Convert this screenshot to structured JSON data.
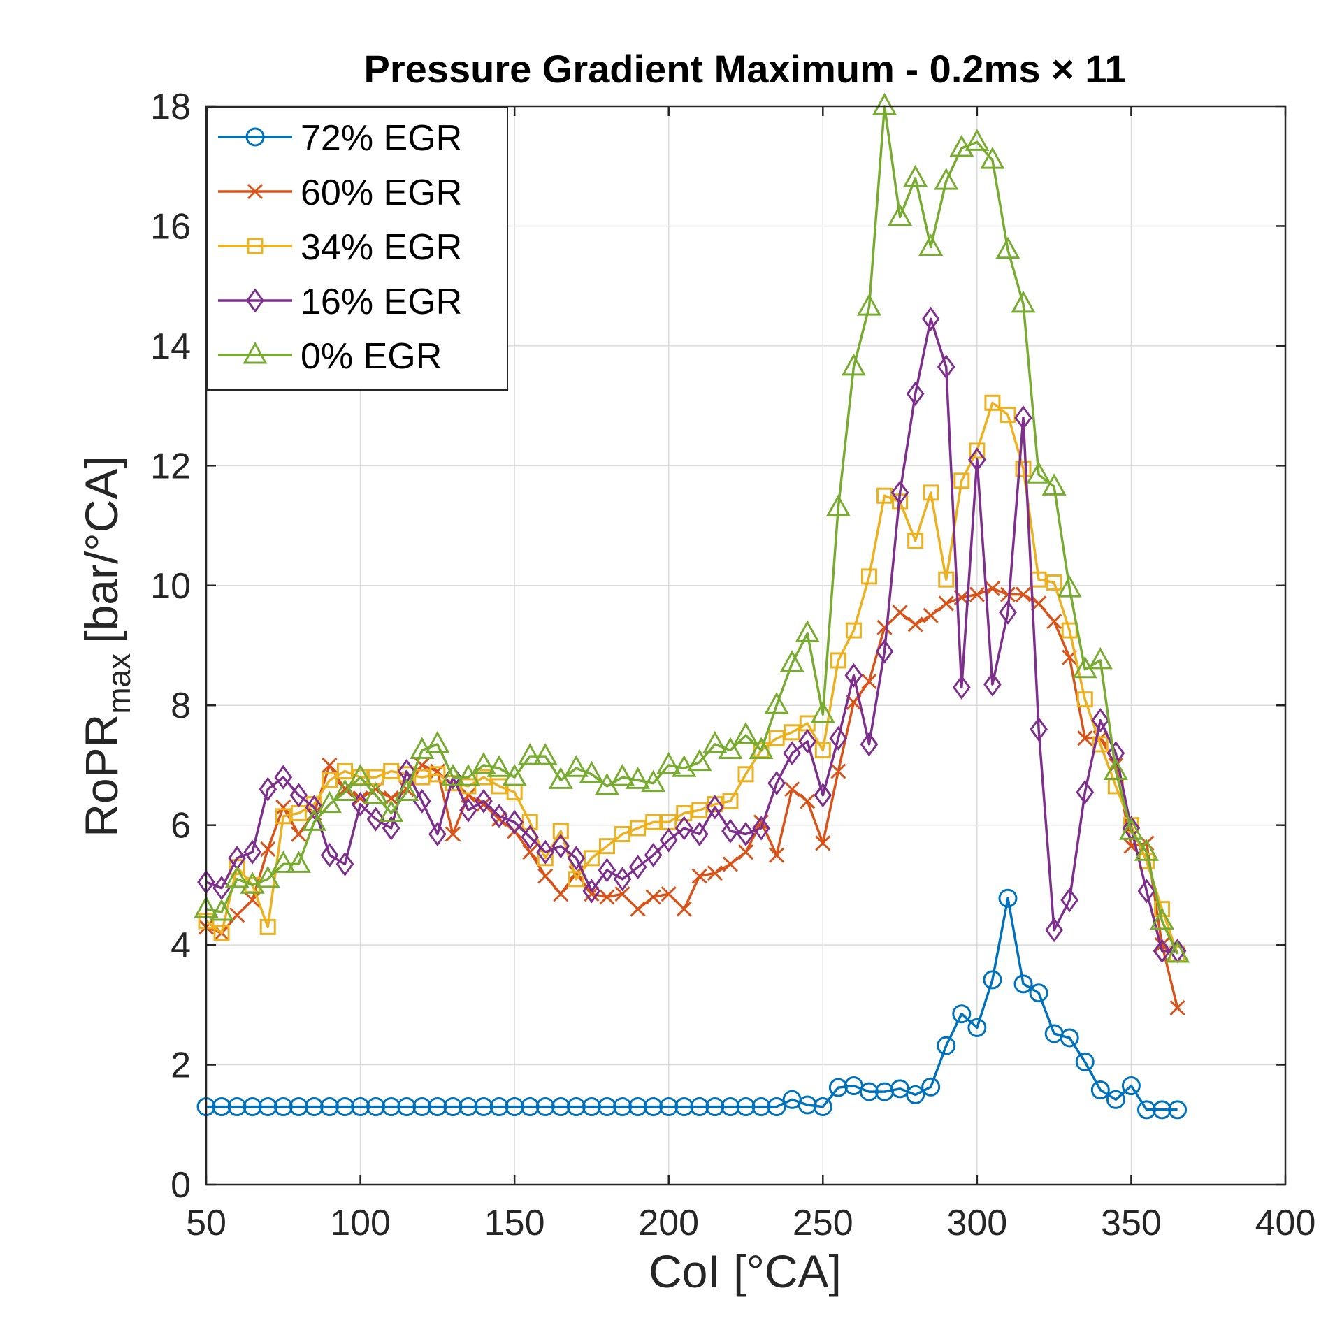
{
  "chart_data": {
    "type": "line",
    "title": "Pressure Gradient Maximum - 0.2ms × 11",
    "xlabel": "CoI [°CA]",
    "ylabel_main": "RoPR",
    "ylabel_sub": "max",
    "ylabel_unit": "[bar/°CA]",
    "xlim": [
      50,
      400
    ],
    "ylim": [
      0,
      18
    ],
    "xticks": [
      50,
      100,
      150,
      200,
      250,
      300,
      350,
      400
    ],
    "yticks": [
      0,
      2,
      4,
      6,
      8,
      10,
      12,
      14,
      16,
      18
    ],
    "grid": true,
    "legend_position": "top-left",
    "x": [
      50,
      55,
      60,
      65,
      70,
      75,
      80,
      85,
      90,
      95,
      100,
      105,
      110,
      115,
      120,
      125,
      130,
      135,
      140,
      145,
      150,
      155,
      160,
      165,
      170,
      175,
      180,
      185,
      190,
      195,
      200,
      205,
      210,
      215,
      220,
      225,
      230,
      235,
      240,
      245,
      250,
      255,
      260,
      265,
      270,
      275,
      280,
      285,
      290,
      295,
      300,
      305,
      310,
      315,
      320,
      325,
      330,
      335,
      340,
      345,
      350,
      355,
      360,
      365
    ],
    "series": [
      {
        "name": "72% EGR",
        "color": "#0072BD",
        "marker": "circle",
        "values": [
          1.3,
          1.3,
          1.3,
          1.3,
          1.3,
          1.3,
          1.3,
          1.3,
          1.3,
          1.3,
          1.3,
          1.3,
          1.3,
          1.3,
          1.3,
          1.3,
          1.3,
          1.3,
          1.3,
          1.3,
          1.3,
          1.3,
          1.3,
          1.3,
          1.3,
          1.3,
          1.3,
          1.3,
          1.3,
          1.3,
          1.3,
          1.3,
          1.3,
          1.3,
          1.3,
          1.3,
          1.3,
          1.3,
          1.42,
          1.33,
          1.3,
          1.62,
          1.65,
          1.55,
          1.55,
          1.6,
          1.5,
          1.63,
          2.32,
          2.85,
          2.62,
          3.42,
          4.78,
          3.35,
          3.2,
          2.52,
          2.45,
          2.05,
          1.58,
          1.42,
          1.65,
          1.25,
          1.25,
          1.25
        ]
      },
      {
        "name": "60% EGR",
        "color": "#D95319",
        "marker": "x",
        "values": [
          4.3,
          4.2,
          4.5,
          4.75,
          5.6,
          6.3,
          5.85,
          6.2,
          7.0,
          6.6,
          6.45,
          6.6,
          6.45,
          6.6,
          7.0,
          6.9,
          5.85,
          6.5,
          6.35,
          6.1,
          5.9,
          5.55,
          5.15,
          4.85,
          5.2,
          4.85,
          4.8,
          4.85,
          4.6,
          4.8,
          4.85,
          4.6,
          5.15,
          5.2,
          5.35,
          5.55,
          6.05,
          5.5,
          6.6,
          6.4,
          5.7,
          6.9,
          8.05,
          8.4,
          9.3,
          9.55,
          9.35,
          9.5,
          9.7,
          9.8,
          9.85,
          9.95,
          9.85,
          9.85,
          9.7,
          9.4,
          8.8,
          7.45,
          7.45,
          7.0,
          5.65,
          5.7,
          4.0,
          2.95
        ]
      },
      {
        "name": "34% EGR",
        "color": "#EDB120",
        "marker": "square",
        "values": [
          4.4,
          4.2,
          5.3,
          5.0,
          4.3,
          6.15,
          6.2,
          6.35,
          6.75,
          6.9,
          6.8,
          6.8,
          6.9,
          6.85,
          6.8,
          6.85,
          6.7,
          6.65,
          6.8,
          6.65,
          6.55,
          6.05,
          5.45,
          5.9,
          5.1,
          5.45,
          5.65,
          5.85,
          5.95,
          6.05,
          6.05,
          6.2,
          6.25,
          6.35,
          6.4,
          6.85,
          7.25,
          7.45,
          7.55,
          7.7,
          7.25,
          8.75,
          9.25,
          10.15,
          11.5,
          11.4,
          10.75,
          11.55,
          10.1,
          11.75,
          12.25,
          13.05,
          12.85,
          11.95,
          10.1,
          10.05,
          9.25,
          8.1,
          7.35,
          6.65,
          6.0,
          5.4,
          4.6,
          3.85
        ]
      },
      {
        "name": "16% EGR",
        "color": "#7E2F8E",
        "marker": "diamond",
        "values": [
          5.05,
          4.95,
          5.45,
          5.55,
          6.6,
          6.8,
          6.5,
          6.3,
          5.5,
          5.35,
          6.35,
          6.1,
          5.95,
          6.9,
          6.4,
          5.85,
          6.8,
          6.25,
          6.4,
          6.15,
          6.05,
          5.8,
          5.55,
          5.65,
          5.45,
          4.9,
          5.25,
          5.1,
          5.3,
          5.5,
          5.75,
          5.95,
          5.85,
          6.3,
          5.9,
          5.85,
          5.95,
          6.7,
          7.2,
          7.4,
          6.5,
          7.45,
          8.5,
          7.35,
          8.9,
          11.55,
          13.2,
          14.45,
          13.65,
          8.3,
          12.1,
          8.35,
          9.55,
          12.8,
          7.6,
          4.25,
          4.75,
          6.55,
          7.75,
          7.2,
          5.95,
          4.9,
          3.9,
          3.9
        ]
      },
      {
        "name": "0% EGR",
        "color": "#77AC30",
        "marker": "triangle",
        "values": [
          4.6,
          4.55,
          5.1,
          5.0,
          5.1,
          5.35,
          5.35,
          6.05,
          6.35,
          6.55,
          6.8,
          6.5,
          6.2,
          6.55,
          7.25,
          7.35,
          6.8,
          6.8,
          7.0,
          6.95,
          6.8,
          7.15,
          7.15,
          6.75,
          6.95,
          6.85,
          6.65,
          6.8,
          6.75,
          6.7,
          7.0,
          6.95,
          7.05,
          7.35,
          7.25,
          7.5,
          7.25,
          8.0,
          8.7,
          9.2,
          7.85,
          11.3,
          13.65,
          14.65,
          18.0,
          16.15,
          16.8,
          15.65,
          16.75,
          17.3,
          17.4,
          17.1,
          15.6,
          14.7,
          11.85,
          11.65,
          9.95,
          8.6,
          8.75,
          6.9,
          5.9,
          5.55,
          4.4,
          3.85
        ]
      }
    ]
  }
}
